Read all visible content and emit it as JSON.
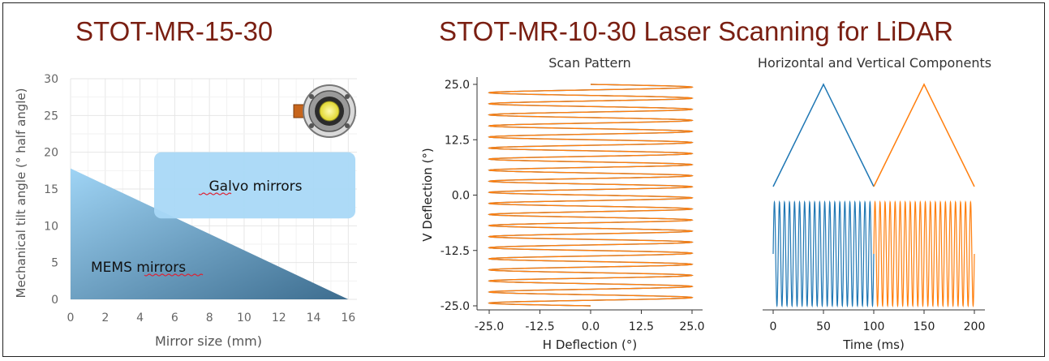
{
  "headings": {
    "left": "STOT-MR-15-30",
    "right": "STOT-MR-10-30 Laser Scanning for LiDAR"
  },
  "colors": {
    "heading": "#7a1f12",
    "series_blue": "#1f77b4",
    "series_orange": "#ff7f0e",
    "galvo_fill": "#a9d8f7",
    "mems_top": "#9fd4f5",
    "mems_bottom": "#3d6d8f"
  },
  "icons": {
    "mirror_device": "mems-mirror-device-icon"
  },
  "chart_data": [
    {
      "type": "area",
      "title": "",
      "xlabel": "Mirror size (mm)",
      "ylabel": "Mechanical tilt angle (° half angle)",
      "xlim": [
        0,
        16.5
      ],
      "ylim": [
        0,
        30
      ],
      "xticks": [
        "0",
        "2",
        "4",
        "6",
        "8",
        "10",
        "12",
        "14",
        "16"
      ],
      "yticks": [
        "0",
        "5",
        "10",
        "15",
        "20",
        "25",
        "30"
      ],
      "grid": true,
      "regions": [
        {
          "name": "MEMS mirrors",
          "boundary": [
            [
              0,
              17.8
            ],
            [
              16,
              0
            ]
          ]
        },
        {
          "name": "Galvo mirrors",
          "x_range": [
            5,
            16.5
          ],
          "y_range": [
            11,
            20
          ]
        }
      ]
    },
    {
      "type": "line",
      "title": "Scan Pattern",
      "xlabel": "H Deflection (°)",
      "ylabel": "V Deflection (°)",
      "xlim": [
        -25,
        25
      ],
      "ylim": [
        -25,
        25
      ],
      "xticks": [
        "-25.0",
        "-12.5",
        "0.0",
        "12.5",
        "25.0"
      ],
      "yticks": [
        "-25.0",
        "-12.5",
        "0.0",
        "12.5",
        "25.0"
      ],
      "grid": false,
      "series": [
        {
          "color": "#1f77b4",
          "v_start": 25,
          "v_end": -25,
          "h_amplitude": 25,
          "h_cycles": 20
        },
        {
          "color": "#ff7f0e",
          "v_start": -25,
          "v_end": 25,
          "h_amplitude": 25,
          "h_cycles": 20
        }
      ]
    },
    {
      "type": "line",
      "title": "Horizontal and Vertical Components",
      "xlabel": "Time (ms)",
      "ylabel": "",
      "xlim": [
        0,
        200
      ],
      "xticks": [
        "0",
        "50",
        "100",
        "150",
        "200"
      ],
      "grid": false,
      "series": [
        {
          "component": "vertical",
          "color": "#1f77b4",
          "x": [
            0,
            50,
            100
          ],
          "y": [
            -25,
            25,
            -25
          ]
        },
        {
          "component": "vertical",
          "color": "#ff7f0e",
          "x": [
            100,
            150,
            200
          ],
          "y": [
            -25,
            25,
            -25
          ]
        },
        {
          "component": "horizontal",
          "color": "#1f77b4",
          "t_range": [
            0,
            100
          ],
          "cycles": 20,
          "amplitude": 25
        },
        {
          "component": "horizontal",
          "color": "#ff7f0e",
          "t_range": [
            100,
            200
          ],
          "cycles": 20,
          "amplitude": 25
        }
      ]
    }
  ]
}
